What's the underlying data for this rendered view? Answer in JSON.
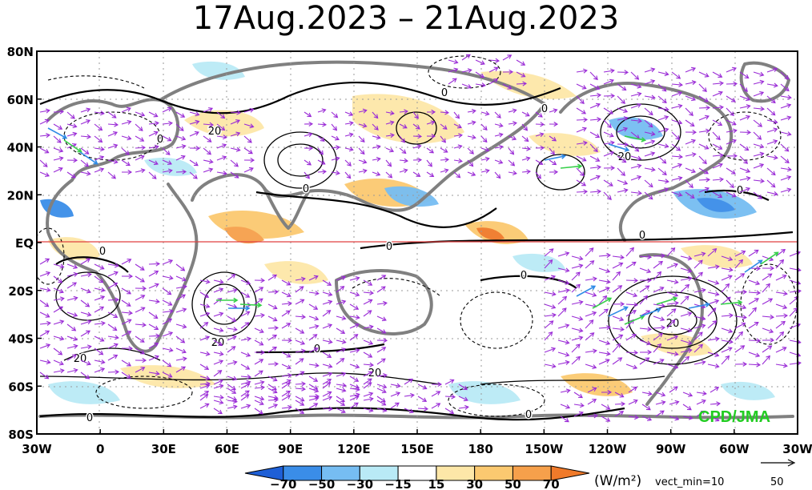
{
  "title": "17Aug.2023 – 21Aug.2023",
  "latitude_labels": [
    "80N",
    "60N",
    "40N",
    "20N",
    "EQ",
    "20S",
    "40S",
    "60S",
    "80S"
  ],
  "longitude_labels": [
    "30W",
    "0",
    "30E",
    "60E",
    "90E",
    "120E",
    "150E",
    "180",
    "150W",
    "120W",
    "90W",
    "60W",
    "30W"
  ],
  "colorbar": {
    "ticks": [
      "−70",
      "−50",
      "−30",
      "−15",
      "15",
      "30",
      "50",
      "70"
    ],
    "colors": [
      "#1e5fd6",
      "#3a8de8",
      "#76bdf2",
      "#b9eaf6",
      "#ffffff",
      "#fde7a8",
      "#fbc970",
      "#f6a04b",
      "#f07a2a"
    ]
  },
  "units_label": "(W/m²)",
  "vector_min_label": "vect_min=10",
  "reference_vector_label": "50",
  "credit": "CPD/JMA",
  "contour_labels": [
    "0",
    "20",
    "0",
    "0",
    "20",
    "0",
    "0",
    "0",
    "20",
    "0",
    "0",
    "20",
    "20",
    "0",
    "0",
    "0",
    "0",
    "20"
  ],
  "colors": {
    "vector": "#9a2bd6",
    "vector_strong_blue": "#2f8be6",
    "vector_strong_green": "#37d04a",
    "coast": "#808080",
    "equator": "#e04040",
    "grid": "#9a9a9a"
  }
}
